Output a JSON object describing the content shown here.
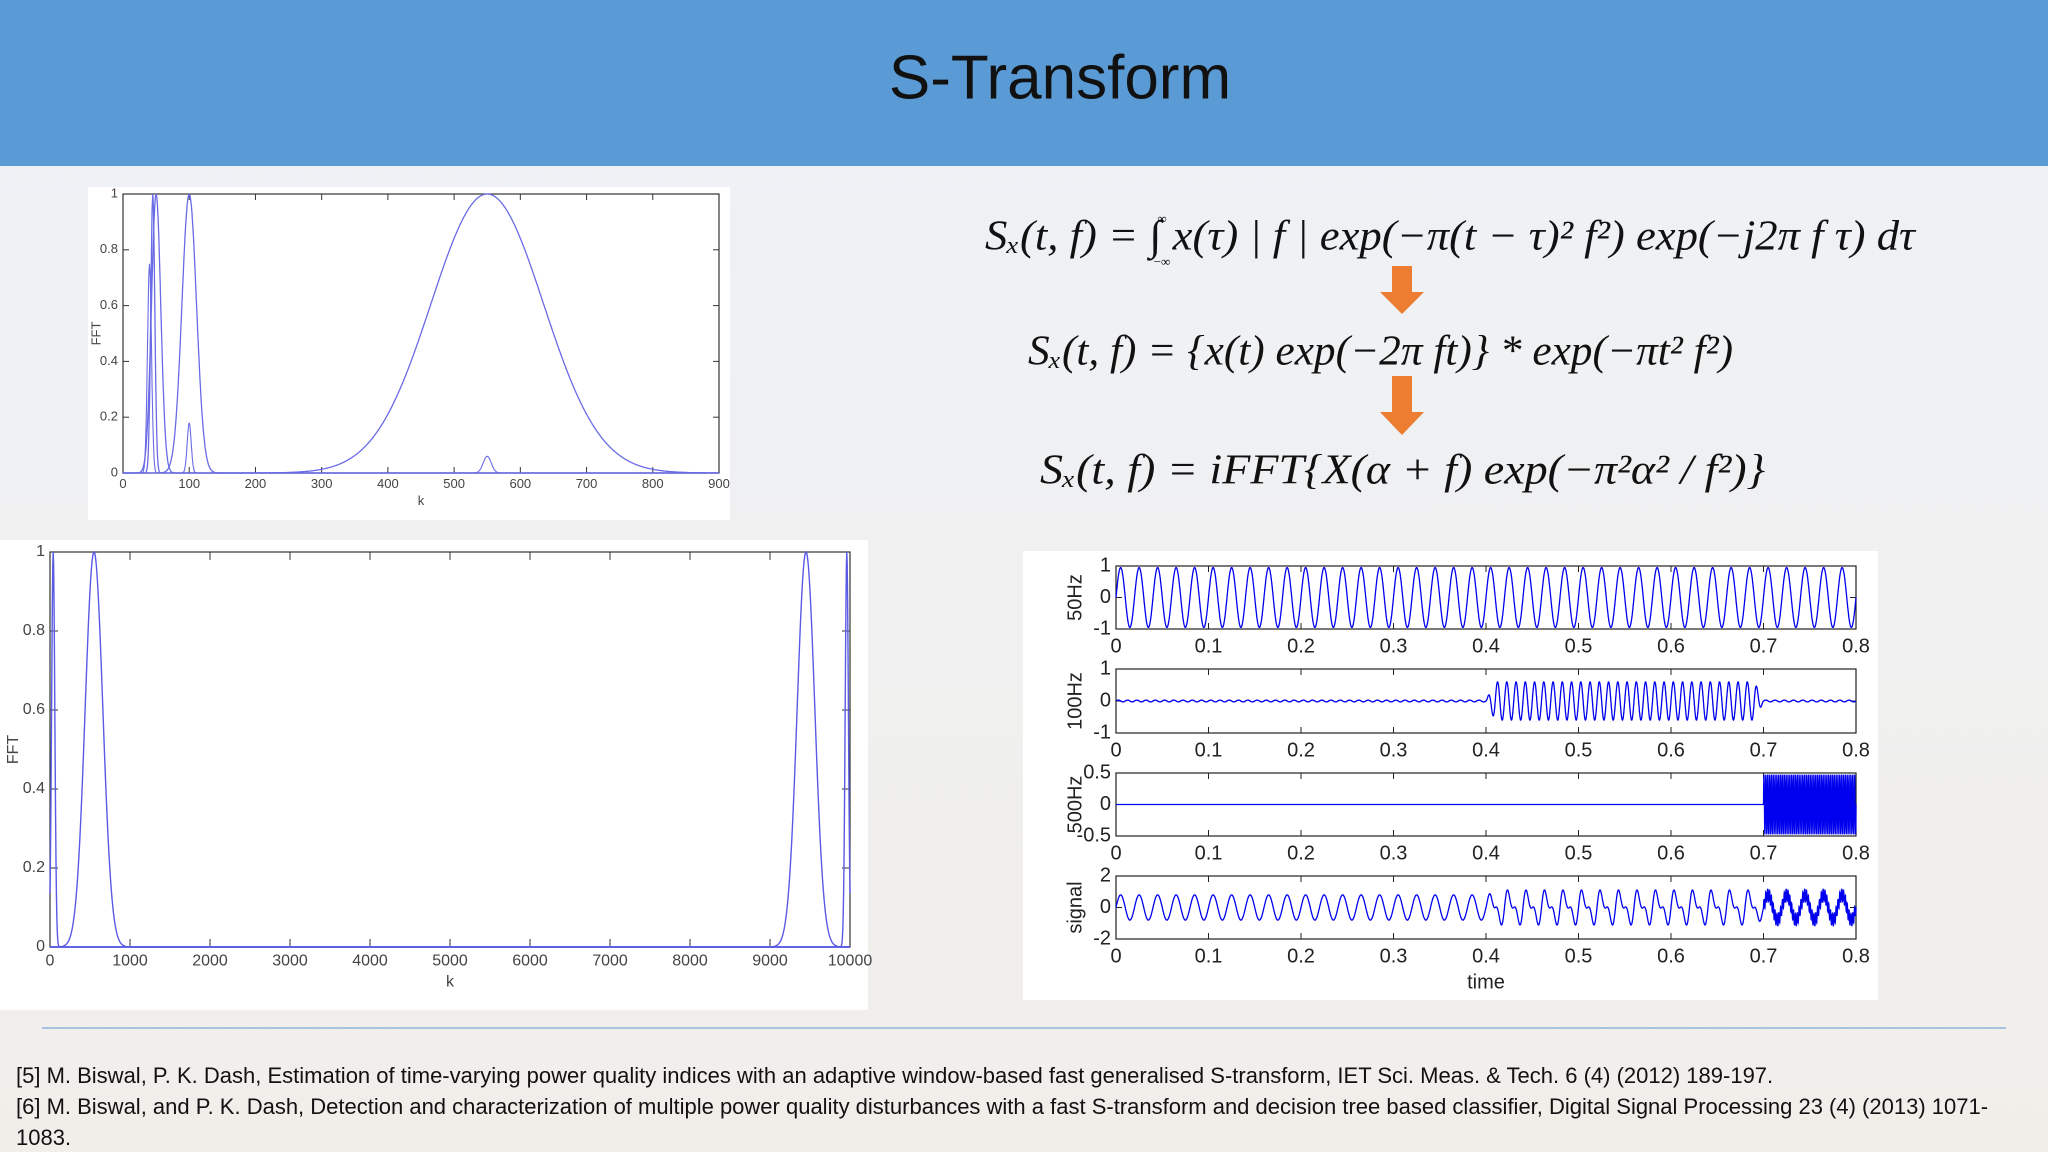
{
  "header": {
    "title": "S-Transform"
  },
  "equations": [
    {
      "text": "Sₓ(t, f) = ∫ x(τ) | f | exp(−π(t − τ)² f²) exp(−j2π f τ) dτ",
      "upper": "∞",
      "lower": "−∞"
    },
    {
      "text": "Sₓ(t, f) = {x(t) exp(−2π ft)} * exp(−πt² f²)"
    },
    {
      "text": "Sₓ(t, f) = iFFT{X(α + f) exp(−π²α² / f²)}"
    }
  ],
  "plots": [
    {
      "ylabel": "FFT",
      "xlabel": "k",
      "xticks": [
        0,
        100,
        200,
        300,
        400,
        500,
        600,
        700,
        800,
        900
      ],
      "yticks": [
        0,
        0.2,
        0.4,
        0.6,
        0.8,
        1
      ]
    },
    {
      "ylabel": "FFT",
      "xlabel": "k",
      "xticks": [
        0,
        1000,
        2000,
        3000,
        4000,
        5000,
        6000,
        7000,
        8000,
        9000,
        10000
      ],
      "yticks": [
        0,
        0.2,
        0.4,
        0.6,
        0.8,
        1
      ]
    },
    {
      "ylabel": "50Hz",
      "xticks": [
        0,
        0.1,
        0.2,
        0.3,
        0.4,
        0.5,
        0.6,
        0.7,
        0.8
      ],
      "yticks": [
        -1,
        0,
        1
      ]
    },
    {
      "ylabel": "100Hz",
      "xticks": [
        0,
        0.1,
        0.2,
        0.3,
        0.4,
        0.5,
        0.6,
        0.7,
        0.8
      ],
      "yticks": [
        -1,
        0,
        1
      ]
    },
    {
      "ylabel": "500Hz",
      "xticks": [
        0,
        0.1,
        0.2,
        0.3,
        0.4,
        0.5,
        0.6,
        0.7,
        0.8
      ],
      "yticks": [
        -0.5,
        0,
        0.5
      ]
    },
    {
      "ylabel": "signal",
      "xlabel": "time",
      "xticks": [
        0,
        0.1,
        0.2,
        0.3,
        0.4,
        0.5,
        0.6,
        0.7,
        0.8
      ],
      "yticks": [
        -2,
        0,
        2
      ]
    }
  ],
  "references": [
    "[5] M. Biswal, P. K. Dash, Estimation of time-varying power quality indices with an adaptive window-based fast generalised S-transform, IET Sci. Meas. & Tech. 6 (4) (2012) 189-197.",
    "[6] M. Biswal, and P. K. Dash, Detection and characterization of multiple power quality disturbances with a fast S-transform and decision tree based classifier, Digital Signal Processing 23 (4) (2013) 1071-1083."
  ]
}
